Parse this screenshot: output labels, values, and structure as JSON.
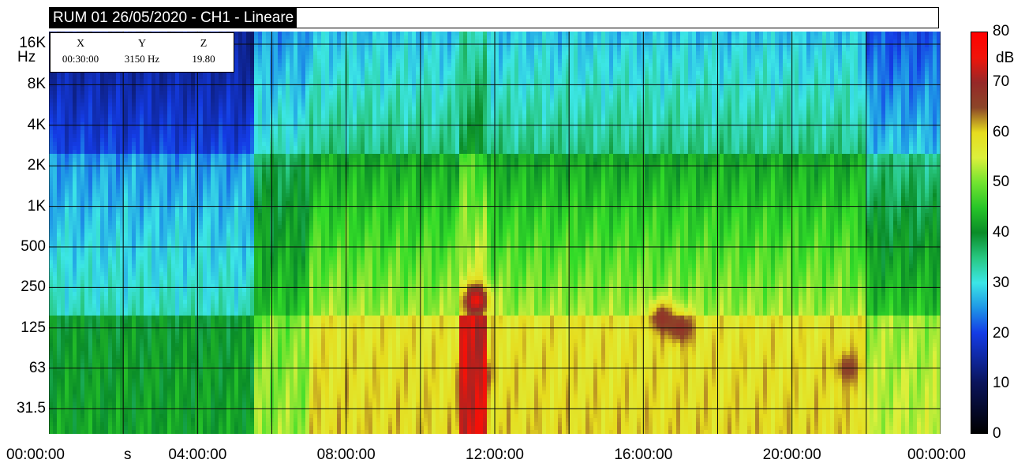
{
  "title": "RUM 01 26/05/2020 - CH1 - Lineare",
  "cursor": {
    "headers": [
      "X",
      "Y",
      "Z"
    ],
    "values": [
      "00:30:00",
      "3150 Hz",
      "19.80"
    ]
  },
  "chart_data": {
    "type": "heatmap",
    "title": "RUM 01 26/05/2020 - CH1 - Lineare",
    "xlabel": "s",
    "ylabel": "Hz",
    "x_ticks": [
      "00:00:00",
      "04:00:00",
      "08:00:00",
      "12:00:00",
      "16:00:00",
      "20:00:00",
      "00:00:00"
    ],
    "y_ticks": [
      "16K",
      "8K",
      "4K",
      "2K",
      "1K",
      "500",
      "250",
      "125",
      "63",
      "31.5"
    ],
    "y_ticks_displayed": [
      "16K",
      "8K",
      "4K",
      "2K",
      "1K",
      "500",
      "250",
      "125",
      "63",
      "31.5"
    ],
    "y_scale": "log",
    "colorbar": {
      "label": "dB",
      "ticks": [
        80,
        70,
        60,
        50,
        40,
        30,
        20,
        10,
        0
      ],
      "range": [
        0,
        80
      ]
    },
    "regions": [
      {
        "time_from": "00:00:00",
        "time_to": "05:30:00",
        "level_high_freq_dB": 20,
        "level_mid_freq_dB": 32,
        "level_low_freq_dB": 40
      },
      {
        "time_from": "05:30:00",
        "time_to": "07:00:00",
        "level_high_freq_dB": 32,
        "level_mid_freq_dB": 45,
        "level_low_freq_dB": 50
      },
      {
        "time_from": "07:00:00",
        "time_to": "22:00:00",
        "level_high_freq_dB": 35,
        "level_mid_freq_dB": 52,
        "level_low_freq_dB": 58
      },
      {
        "time_from": "22:00:00",
        "time_to": "00:00:00",
        "level_high_freq_dB": 28,
        "level_mid_freq_dB": 45,
        "level_low_freq_dB": 52
      },
      {
        "time_from": "11:00:00",
        "time_to": "11:45:00",
        "level_high_freq_dB": 40,
        "level_mid_freq_dB": 57,
        "level_low_freq_dB": 72
      }
    ],
    "hotspots": [
      {
        "time": "11:30:00",
        "freq_hz": 200,
        "level_dB": 75
      },
      {
        "time": "11:30:00",
        "freq_hz": 55,
        "level_dB": 72
      },
      {
        "time": "16:30:00",
        "freq_hz": 150,
        "level_dB": 68
      },
      {
        "time": "17:00:00",
        "freq_hz": 125,
        "level_dB": 68
      },
      {
        "time": "21:30:00",
        "freq_hz": 63,
        "level_dB": 66
      }
    ],
    "grid": true
  }
}
